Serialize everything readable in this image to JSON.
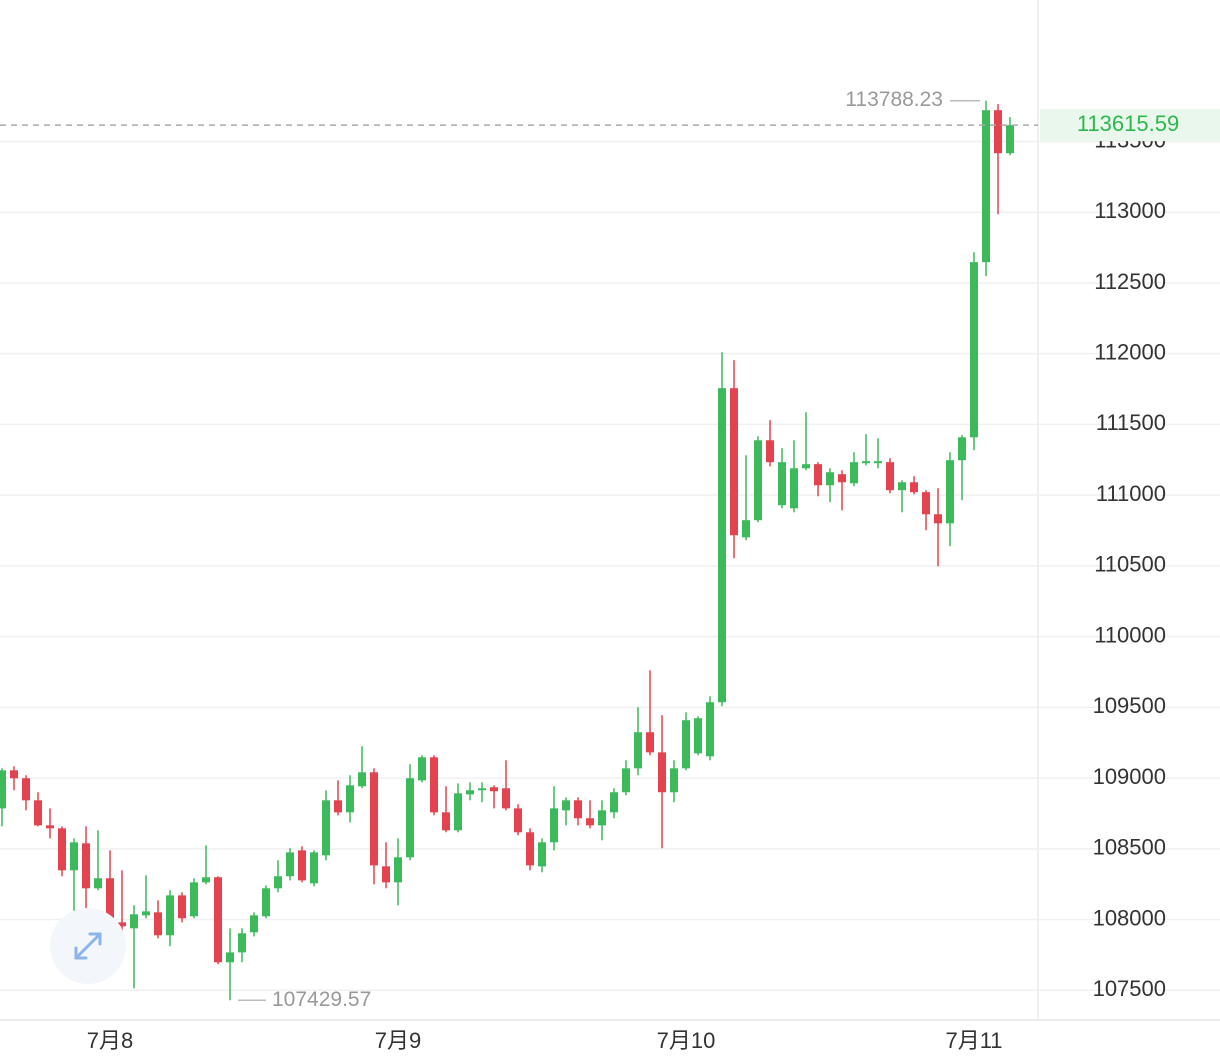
{
  "chart_data": {
    "type": "candlestick",
    "categories": [
      null,
      null,
      null,
      null,
      null,
      null,
      null,
      null,
      null,
      "7月8",
      null,
      null,
      null,
      null,
      null,
      null,
      null,
      null,
      null,
      null,
      null,
      null,
      null,
      null,
      null,
      null,
      null,
      null,
      null,
      null,
      null,
      null,
      null,
      "7月9",
      null,
      null,
      null,
      null,
      null,
      null,
      null,
      null,
      null,
      null,
      null,
      null,
      null,
      null,
      null,
      null,
      null,
      null,
      null,
      null,
      null,
      null,
      null,
      "7月10",
      null,
      null,
      null,
      null,
      null,
      null,
      null,
      null,
      null,
      null,
      null,
      null,
      null,
      null,
      null,
      null,
      null,
      null,
      null,
      null,
      null,
      null,
      null,
      "7月11",
      null,
      null,
      null
    ],
    "open": [
      108786,
      109055,
      108999,
      108843,
      108666,
      108645,
      108348,
      108539,
      108221,
      108292,
      107980,
      107938,
      108030,
      108051,
      107889,
      108171,
      108023,
      108263,
      108299,
      107698,
      107768,
      107910,
      108023,
      108221,
      108306,
      108489,
      108256,
      108454,
      108843,
      108758,
      108942,
      109041,
      108376,
      108263,
      108440,
      108984,
      109147,
      108758,
      108631,
      108885,
      108914,
      108935,
      108928,
      108786,
      108617,
      108376,
      108546,
      108772,
      108843,
      108716,
      108666,
      108758,
      108900,
      109069,
      109324,
      109182,
      108900,
      109069,
      109175,
      109154,
      109536,
      111756,
      110702,
      110823,
      111388,
      110929,
      110907,
      111190,
      111219,
      111070,
      111148,
      111084,
      111226,
      111226,
      111233,
      111035,
      111091,
      111021,
      110865,
      110801,
      111247,
      111409,
      112647,
      113721,
      113417
    ],
    "high": [
      109069,
      109083,
      109020,
      108900,
      108786,
      108659,
      108574,
      108659,
      108631,
      108489,
      108348,
      108101,
      108313,
      108136,
      108207,
      108193,
      108292,
      108525,
      108306,
      107938,
      107938,
      108051,
      108242,
      108419,
      108504,
      108518,
      108489,
      108914,
      108984,
      109020,
      109225,
      109069,
      108546,
      108574,
      109098,
      109161,
      109161,
      108942,
      108963,
      108970,
      108970,
      108949,
      109126,
      108815,
      108645,
      108574,
      108942,
      108864,
      108864,
      108843,
      108843,
      108928,
      109126,
      109501,
      109762,
      109444,
      109126,
      109465,
      109437,
      109578,
      112010,
      111954,
      111282,
      111416,
      111530,
      111332,
      111388,
      111586,
      111233,
      111190,
      111176,
      111303,
      111431,
      111402,
      111261,
      111105,
      111134,
      111035,
      111049,
      111303,
      111424,
      112717,
      113788.23,
      113764,
      113672
    ],
    "low": [
      108659,
      108914,
      108772,
      108659,
      108574,
      108306,
      108030,
      107980,
      108207,
      107889,
      107818,
      107514,
      108009,
      107867,
      107811,
      107980,
      108009,
      108249,
      107684,
      107429.57,
      107698,
      107881,
      108009,
      108193,
      108277,
      108263,
      108235,
      108419,
      108737,
      108687,
      108928,
      108249,
      108221,
      108101,
      108419,
      108970,
      108737,
      108617,
      108617,
      108843,
      108829,
      108786,
      108772,
      108596,
      108348,
      108334,
      108489,
      108666,
      108666,
      108645,
      108560,
      108716,
      108878,
      109020,
      109161,
      108504,
      108829,
      109055,
      109161,
      109126,
      109508,
      110554,
      110681,
      110808,
      111204,
      110907,
      110879,
      111176,
      110992,
      110950,
      110893,
      111063,
      111211,
      111190,
      111013,
      110879,
      111006,
      110752,
      110497,
      110639,
      110964,
      111317,
      112548,
      112986,
      113403
    ],
    "close": [
      109055,
      108999,
      108843,
      108666,
      108645,
      108348,
      108546,
      108221,
      108292,
      107959,
      107952,
      108037,
      108058,
      107889,
      108171,
      108009,
      108263,
      108299,
      107698,
      107768,
      107903,
      108030,
      108221,
      108306,
      108475,
      108277,
      108475,
      108843,
      108758,
      108949,
      109041,
      108383,
      108263,
      108440,
      108999,
      109147,
      108758,
      108631,
      108892,
      108914,
      108928,
      108907,
      108786,
      108617,
      108383,
      108546,
      108786,
      108843,
      108716,
      108666,
      108772,
      108900,
      109069,
      109324,
      109182,
      108900,
      109069,
      109409,
      109423,
      109536,
      111756,
      110717,
      110823,
      111388,
      111233,
      111233,
      111190,
      111219,
      111070,
      111162,
      111091,
      111233,
      111240,
      111240,
      111035,
      111091,
      111021,
      110865,
      110801,
      111247,
      111409,
      112647,
      113721,
      113417,
      113615.59
    ],
    "up_color": "#3cb95b",
    "down_color": "#e2434f",
    "ylim": [
      107290,
      114500
    ],
    "yticks": [
      107500,
      108000,
      108500,
      109000,
      109500,
      110000,
      110500,
      111000,
      111500,
      112000,
      112500,
      113000,
      113500
    ],
    "grid": true
  }
}
